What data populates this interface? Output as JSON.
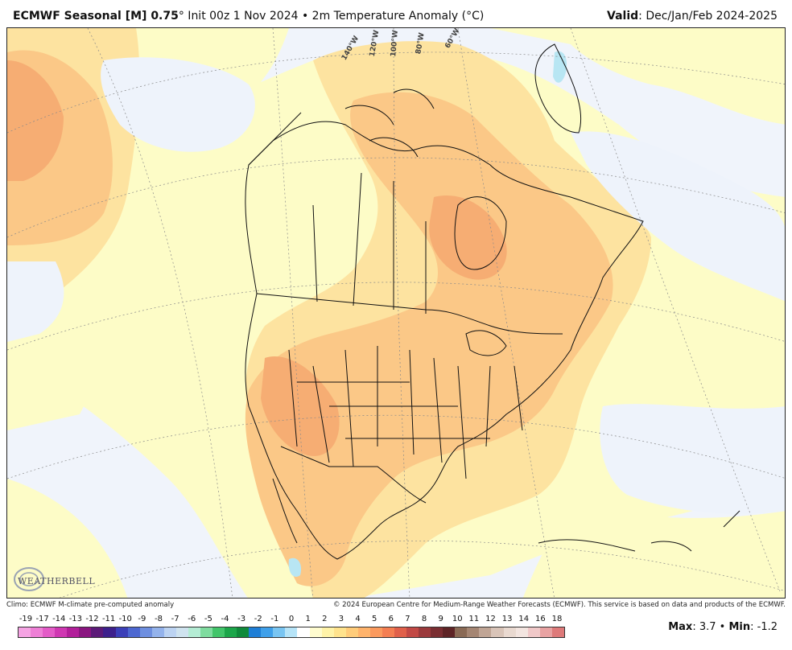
{
  "header": {
    "title_bold": "ECMWF Seasonal [M] 0.75",
    "title_rest": "° Init 00z 1 Nov 2024 • 2m Temperature Anomaly (°C)",
    "valid_label": "Valid",
    "valid_value": ": Dec/Jan/Feb 2024-2025"
  },
  "map": {
    "longitude_labels": [
      "140°W",
      "120°W",
      "100°W",
      "80°W",
      "60°W"
    ],
    "logo_text": "WEATHERBELL"
  },
  "credits": {
    "left": "Climo: ECMWF M-climate pre-computed anomaly",
    "right": "© 2024 European Centre for Medium-Range Weather Forecasts (ECMWF). This service is based on data and products of the ECMWF."
  },
  "scale": {
    "labels": [
      "-19",
      "-17",
      "-14",
      "-13",
      "-12",
      "-11",
      "-10",
      "-9",
      "-8",
      "-7",
      "-6",
      "-5",
      "-4",
      "-3",
      "-2",
      "-1",
      "0",
      "1",
      "2",
      "3",
      "4",
      "5",
      "6",
      "7",
      "8",
      "9",
      "10",
      "11",
      "12",
      "13",
      "14",
      "16",
      "18"
    ],
    "colors": [
      "#f5a3e3",
      "#ee7fd6",
      "#e35bc7",
      "#cf37b2",
      "#b21e9a",
      "#8a1680",
      "#5c1a78",
      "#3d208c",
      "#3b3fb8",
      "#4d68d1",
      "#6e8fe0",
      "#94b3ec",
      "#bcd3f2",
      "#cfe3ef",
      "#b4ecd4",
      "#7fdc9f",
      "#42c56a",
      "#1ca64a",
      "#0f8a3b",
      "#1e7ed6",
      "#3fa0ea",
      "#79c5f2",
      "#b6e4f8",
      "#ffffff",
      "#fffccf",
      "#fff3a8",
      "#ffe38d",
      "#ffcc7a",
      "#ffb36b",
      "#fb9a5e",
      "#f47e52",
      "#e0604a",
      "#c24945",
      "#9b3a3c",
      "#7a2e32",
      "#5e2426",
      "#8a6a55",
      "#a58673",
      "#c0a595",
      "#d9c4b8",
      "#e9d9d0",
      "#f3e5e0",
      "#f0c8c8",
      "#e8a2a2",
      "#de7a7a"
    ]
  },
  "stats": {
    "max_label": "Max",
    "max_value": ": 3.7 • ",
    "min_label": "Min",
    "min_value": ": -1.2"
  },
  "colors": {
    "anomaly_0_1": "#fdfcc7",
    "anomaly_1_2": "#fde9a2",
    "anomaly_2_3": "#fbd08c",
    "anomaly_3_4": "#f6b276",
    "anomaly_neg": "#eef3fb",
    "anomaly_neg_strong": "#b8e6f3"
  }
}
